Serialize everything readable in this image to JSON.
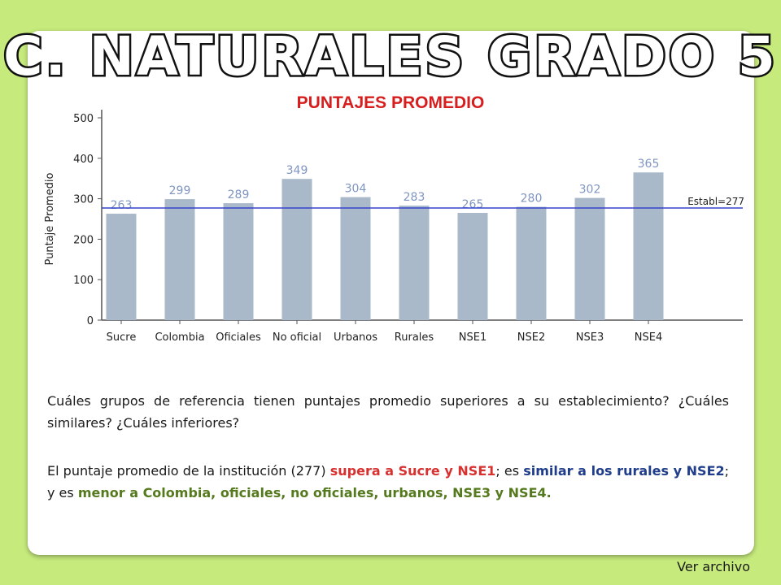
{
  "slide": {
    "title": "C. NATURALES GRADO 5",
    "chart_heading": "PUNTAJES PROMEDIO",
    "question": "Cuáles grupos de referencia tienen puntajes promedio superiores a su establecimiento? ¿Cuáles similares? ¿Cuáles inferiores?",
    "answer": {
      "part1": "El puntaje promedio de la institución (277) ",
      "red": "supera a Sucre y NSE1",
      "part2": "; es ",
      "blue": "similar a los rurales y NSE2",
      "part3": "; y es ",
      "green": "menor a Colombia, oficiales, no oficiales, urbanos, NSE3 y NSE4.",
      "part4": ""
    },
    "link_label": "Ver archivo"
  },
  "colors": {
    "background": "#c6ea7c",
    "bar": "#a9b9c9",
    "reference_line": "#3344cc",
    "title_red": "#d61e1e",
    "value_label": "#7f95c2"
  },
  "chart_data": {
    "type": "bar",
    "title": "PUNTAJES PROMEDIO",
    "xlabel": "",
    "ylabel": "Puntaje Promedio",
    "categories": [
      "Sucre",
      "Colombia",
      "Oficiales",
      "No oficial",
      "Urbanos",
      "Rurales",
      "NSE1",
      "NSE2",
      "NSE3",
      "NSE4"
    ],
    "values": [
      263,
      299,
      289,
      349,
      304,
      283,
      265,
      280,
      302,
      365
    ],
    "value_labels": [
      "263",
      "299",
      "289",
      "349",
      "304",
      "283",
      "265",
      "280",
      "302",
      "365"
    ],
    "ylim": [
      0,
      500
    ],
    "yticks": [
      0,
      100,
      200,
      300,
      400,
      500
    ],
    "reference_line": {
      "value": 277,
      "label": "Establ=277"
    },
    "grid": false,
    "legend": "none"
  }
}
